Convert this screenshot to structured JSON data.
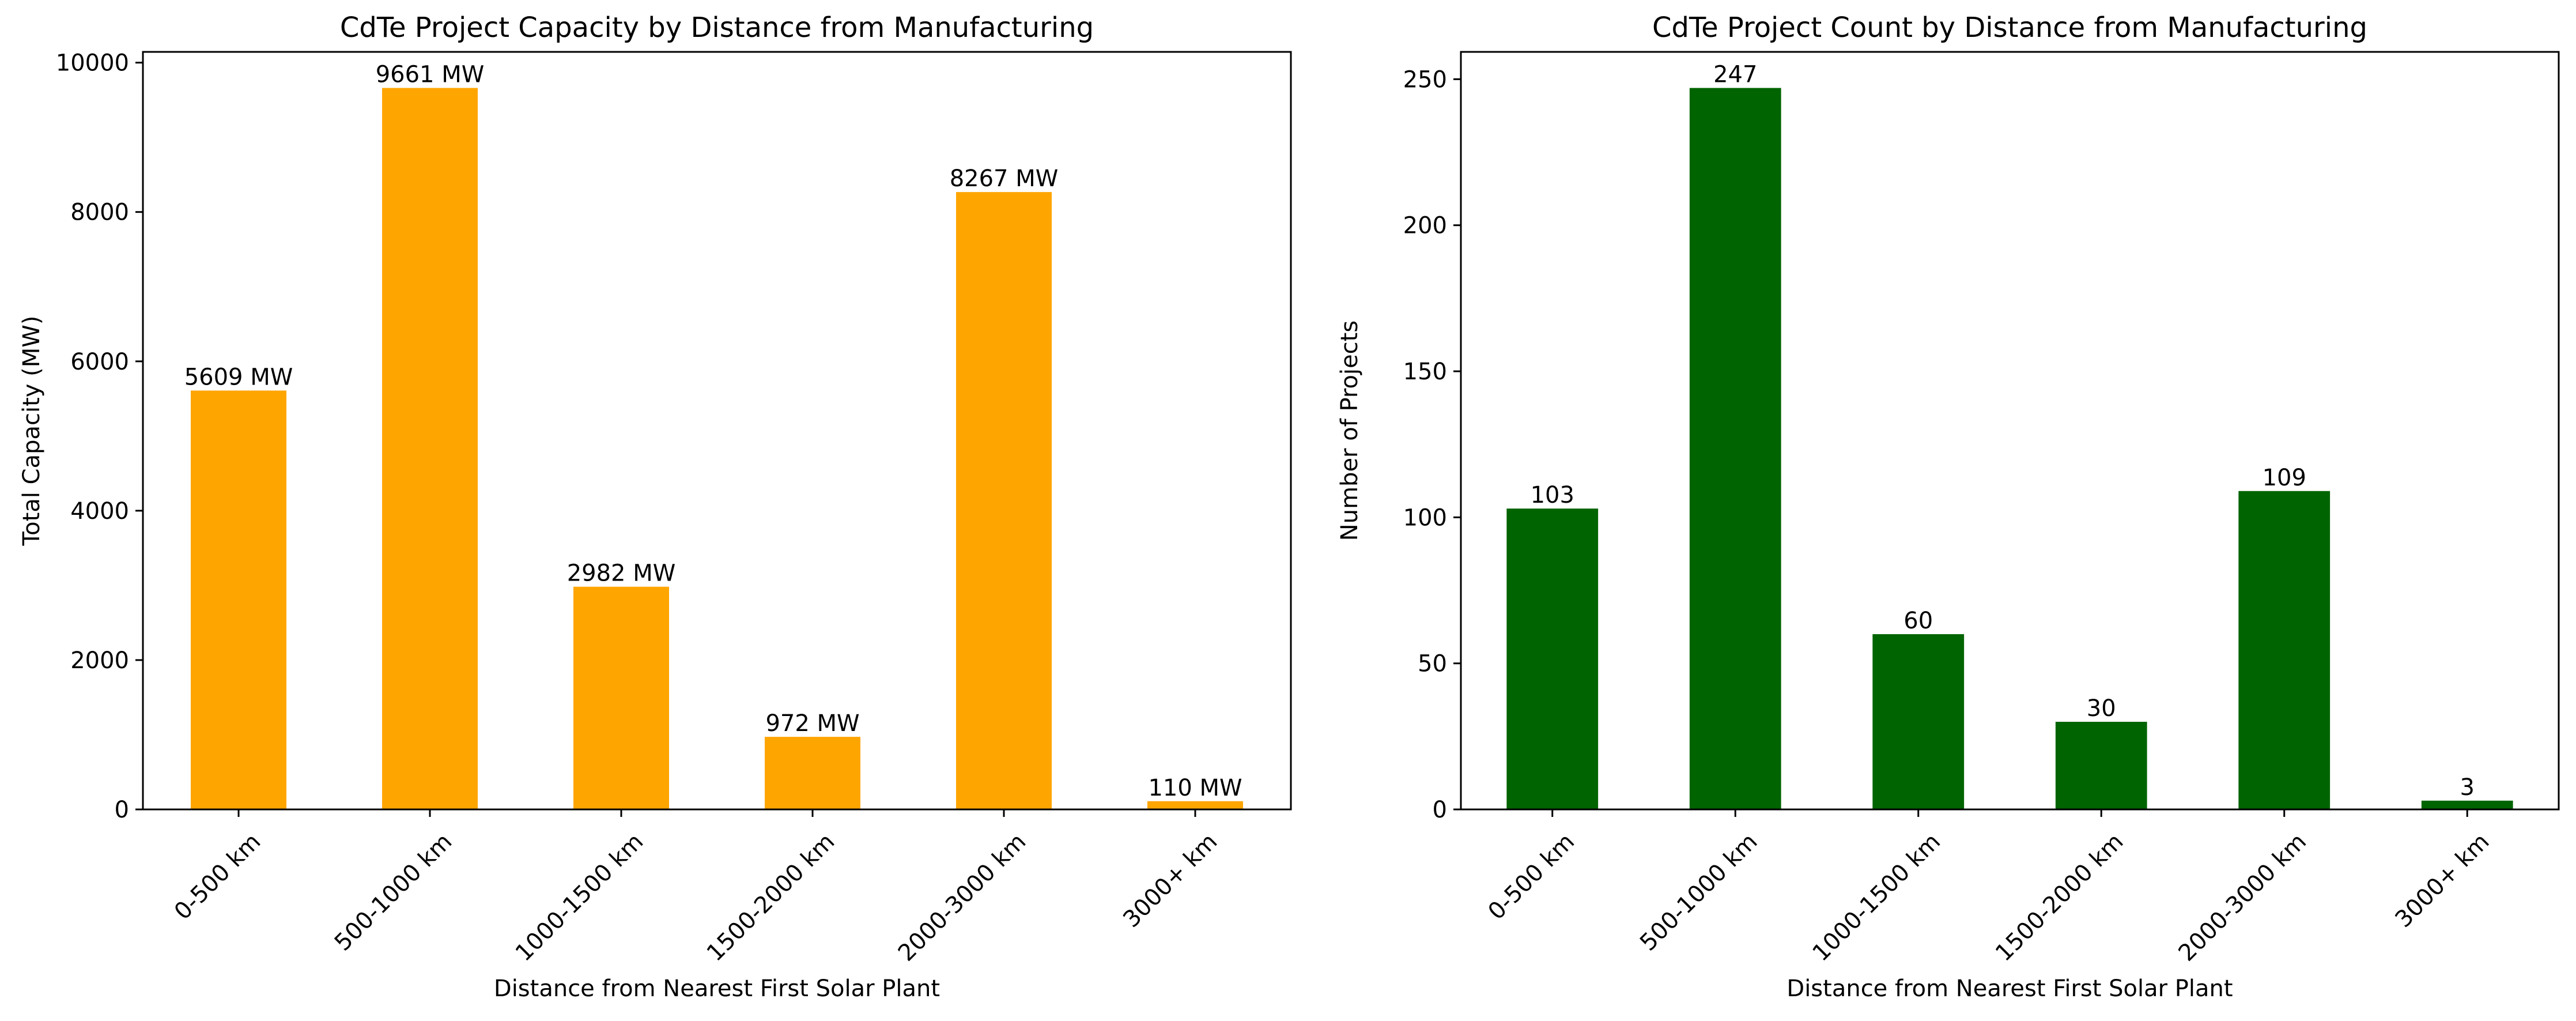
{
  "chart_data": [
    {
      "type": "bar",
      "title": "CdTe Project Capacity by Distance from Manufacturing",
      "xlabel": "Distance from Nearest First Solar Plant",
      "ylabel": "Total Capacity (MW)",
      "categories": [
        "0-500 km",
        "500-1000 km",
        "1000-1500 km",
        "1500-2000 km",
        "2000-3000 km",
        "3000+ km"
      ],
      "values": [
        5609,
        9661,
        2982,
        972,
        8267,
        110
      ],
      "data_labels": [
        "5609 MW",
        "9661 MW",
        "2982 MW",
        "972 MW",
        "8267 MW",
        "110 MW"
      ],
      "yticks": [
        0,
        2000,
        4000,
        6000,
        8000,
        10000
      ],
      "ylim": [
        0,
        10144
      ],
      "bar_color": "#ffa500",
      "grid": false,
      "legend": "none"
    },
    {
      "type": "bar",
      "title": "CdTe Project Count by Distance from Manufacturing",
      "xlabel": "Distance from Nearest First Solar Plant",
      "ylabel": "Number of Projects",
      "categories": [
        "0-500 km",
        "500-1000 km",
        "1000-1500 km",
        "1500-2000 km",
        "2000-3000 km",
        "3000+ km"
      ],
      "values": [
        103,
        247,
        60,
        30,
        109,
        3
      ],
      "data_labels": [
        "103",
        "247",
        "60",
        "30",
        "109",
        "3"
      ],
      "yticks": [
        0,
        50,
        100,
        150,
        200,
        250
      ],
      "ylim": [
        0,
        259.35
      ],
      "bar_color": "#006400",
      "grid": false,
      "legend": "none"
    }
  ]
}
